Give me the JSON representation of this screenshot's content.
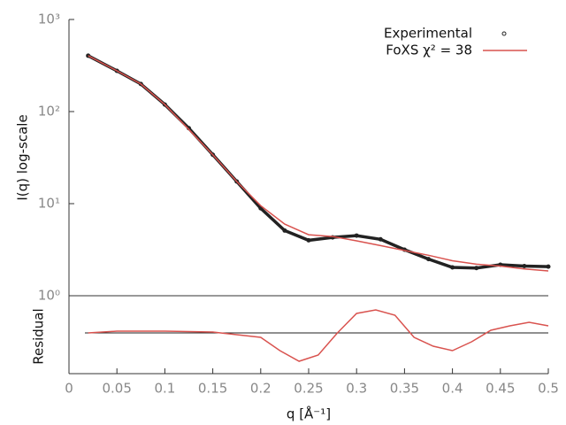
{
  "chart_data": [
    {
      "type": "scatter-line",
      "ylabel": "I(q) log-scale",
      "log_y": true,
      "xlim": [
        0,
        0.5
      ],
      "ylim": [
        1,
        1000
      ],
      "yticks": [
        {
          "value": 1,
          "label": "10⁰"
        },
        {
          "value": 10,
          "label": "10¹"
        },
        {
          "value": 100,
          "label": "10²"
        },
        {
          "value": 1000,
          "label": "10³"
        }
      ],
      "legend": "top-right",
      "x": [
        0.02,
        0.05,
        0.075,
        0.1,
        0.125,
        0.15,
        0.175,
        0.2,
        0.225,
        0.25,
        0.275,
        0.3,
        0.325,
        0.35,
        0.375,
        0.4,
        0.425,
        0.45,
        0.475,
        0.5
      ],
      "series": [
        {
          "name": "Experimental",
          "color": "#222222",
          "values": [
            404,
            277,
            199,
            119,
            66,
            34,
            17.4,
            8.9,
            5.1,
            4.0,
            4.3,
            4.5,
            4.1,
            3.16,
            2.5,
            2.03,
            2.0,
            2.17,
            2.1,
            2.07
          ]
        },
        {
          "name": "FoXS χ² = 38",
          "color": "#d9534f",
          "values": [
            404,
            277,
            199,
            119,
            64,
            34,
            17.4,
            9.5,
            6.0,
            4.6,
            4.4,
            3.95,
            3.5,
            3.1,
            2.75,
            2.4,
            2.2,
            2.1,
            1.95,
            1.86
          ]
        }
      ]
    },
    {
      "type": "line",
      "ylabel": "Residual",
      "xlabel": "q [Å⁻¹]",
      "xlim": [
        0,
        0.5
      ],
      "ylim": [
        -4.6,
        4.2
      ],
      "xticks": [
        0,
        0.05,
        0.1,
        0.15,
        0.2,
        0.25,
        0.3,
        0.35,
        0.4,
        0.45,
        0.5
      ],
      "reference_line": 0,
      "x": [
        0.02,
        0.05,
        0.1,
        0.15,
        0.2,
        0.22,
        0.24,
        0.26,
        0.28,
        0.3,
        0.32,
        0.34,
        0.36,
        0.38,
        0.4,
        0.42,
        0.44,
        0.46,
        0.48,
        0.5
      ],
      "series": [
        {
          "color": "#d9534f",
          "values": [
            0,
            0.2,
            0.2,
            0.1,
            -0.5,
            -2,
            -3.2,
            -2.5,
            0,
            2.2,
            2.6,
            2.0,
            -0.5,
            -1.5,
            -2,
            -1.0,
            0.3,
            0.8,
            1.2,
            0.8
          ]
        }
      ]
    }
  ]
}
